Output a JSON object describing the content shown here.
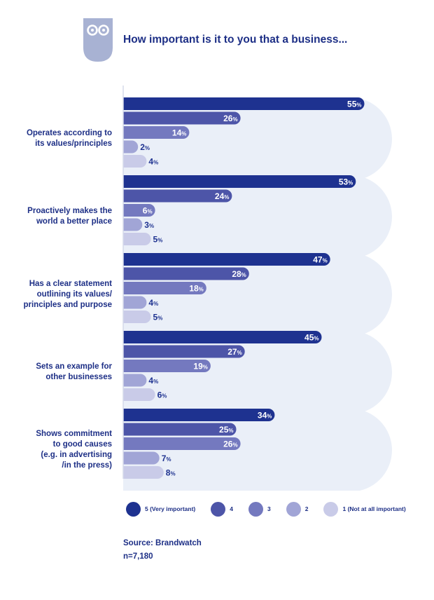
{
  "page": {
    "title": "How important is it to you that a business..."
  },
  "chart_data": {
    "type": "bar",
    "orientation": "horizontal",
    "title": "How important is it to you that a business...",
    "xlim": [
      0,
      100
    ],
    "value_suffix": "%",
    "categories": [
      "Operates according to its values/principles",
      "Proactively makes the world a better place",
      "Has a clear statement outlining its values/ principles and purpose",
      "Sets an example for other businesses",
      "Shows commitment to good causes (e.g. in advertising /in the press)"
    ],
    "category_lines": [
      [
        "Operates according to",
        "its values/principles"
      ],
      [
        "Proactively makes the",
        "world a better place"
      ],
      [
        "Has a clear statement",
        "outlining its values/",
        "principles and purpose"
      ],
      [
        "Sets an example for",
        "other businesses"
      ],
      [
        "Shows commitment",
        "to good causes",
        "(e.g. in advertising",
        "/in the press)"
      ]
    ],
    "series": [
      {
        "name": "5 (Very important)",
        "color": "#1e3290",
        "values": [
          55,
          53,
          47,
          45,
          34
        ]
      },
      {
        "name": "4",
        "color": "#4d55a8",
        "values": [
          26,
          24,
          28,
          27,
          25
        ]
      },
      {
        "name": "3",
        "color": "#7479bf",
        "values": [
          14,
          6,
          18,
          19,
          26
        ]
      },
      {
        "name": "2",
        "color": "#a1a5d6",
        "values": [
          2,
          3,
          4,
          4,
          7
        ]
      },
      {
        "name": "1 (Not at all important)",
        "color": "#c9cbe8",
        "values": [
          4,
          5,
          5,
          6,
          8
        ]
      }
    ],
    "background_color": "#eaeff8",
    "legend_position": "bottom"
  },
  "source": {
    "line1": "Source: Brandwatch",
    "line2": "n=7,180"
  }
}
